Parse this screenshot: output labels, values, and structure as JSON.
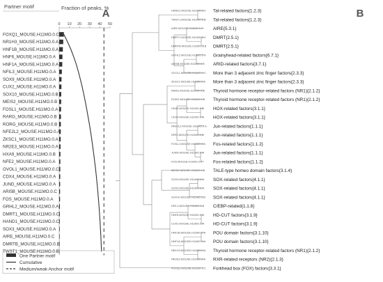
{
  "panel_a": {
    "letter": "A",
    "header_motif": "Partner motif",
    "header_fraction": "Fraction of peaks, %",
    "legend": [
      {
        "label": "One Partner motif",
        "style": "bar"
      },
      {
        "label": "Cumulative",
        "style": "line"
      },
      {
        "label": "Medium/weak Anchor motif",
        "style": "dashed"
      }
    ]
  },
  "panel_b": {
    "letter": "B",
    "leaves": [
      {
        "motif": "HAND1.MOUSE.H11MO.0.C",
        "family": "Tal-related factors{1.2.3}"
      },
      {
        "motif": "TWST1.MOUSE.H11MO.0.B",
        "family": "Tal-related factors{1.2.3}"
      },
      {
        "motif": "AIRE.MOUSE.H11MO.0.C",
        "family": "AIRE{5.3.1}"
      },
      {
        "motif": "DMRT1.MOUSE.H11MO.0.C",
        "family": "DMRT{2.5.1}"
      },
      {
        "motif": "DMRTB.MOUSE.H11MO.0.B",
        "family": "DMRT{2.5.1}"
      },
      {
        "motif": "GRHL2.MOUSE.H11MO.0.A",
        "family": "Grainyhead-related factors{6.7.1}"
      },
      {
        "motif": "ARI5B.MOUSE.H11MO.0.C",
        "family": "ARID-related factors{3.7.1}"
      },
      {
        "motif": "OVOL1.MOUSE.H11MO.0.C",
        "family": "More than 3 adjacent zinc finger factors{2.3.3}"
      },
      {
        "motif": "ZKSC1.MOUSE.H11MO.0.A",
        "family": "More than 3 adjacent zinc finger factors{2.3.3}"
      },
      {
        "motif": "RARG.MOUSE.H11MO.0.B",
        "family": "Thyroid hormone receptor-related factors (NR1){2.1.2}"
      },
      {
        "motif": "RORG.MOUSE.H11MO.0.B",
        "family": "Thyroid hormone receptor-related factors (NR1){2.1.2}"
      },
      {
        "motif": "HXA9.MOUSE.H11MO.0.B",
        "family": "HOX-related factors{3.1.1}"
      },
      {
        "motif": "CDX4.MOUSE.H11MO.0.A",
        "family": "HOX-related factors{3.1.1}"
      },
      {
        "motif": "NFE2L2.MOUSE.H11MO.0.A",
        "family": "Jun-related factors{1.1.1}"
      },
      {
        "motif": "NFE2.MOUSE.H11MO.0.A",
        "family": "Jun-related factors{1.1.1}"
      },
      {
        "motif": "FOSL1.MOUSE.H11MO.0.A",
        "family": "Fos-related factors{1.1.2}"
      },
      {
        "motif": "JUND.MOUSE.H11MO.0.A",
        "family": "Jun-related factors{1.1.1}"
      },
      {
        "motif": "FOS.MOUSE.H11MO.0.A",
        "family": "Fos-related factors{1.1.2}"
      },
      {
        "motif": "MEIS2.MOUSE.H11MO.0.B",
        "family": "TALE-type homeo domain factors{3.1.4}"
      },
      {
        "motif": "SOX3.MOUSE.H11MO.0.A",
        "family": "SOX-related factors{4.1.1}"
      },
      {
        "motif": "SOX9.MOUSE.H11MO.0.A",
        "family": "SOX-related factors{4.1.1}"
      },
      {
        "motif": "SOX10.MOUSE.H11MO.0.B",
        "family": "SOX-related factors{4.1.1}"
      },
      {
        "motif": "NFIL3.MOUSE.H11MO.0.A",
        "family": "C/EBP-related{1.1.8}"
      },
      {
        "motif": "HNF6.MOUSE.H11MO.0.A",
        "family": "HD-CUT factors{3.1.9}"
      },
      {
        "motif": "CUX2.MOUSE.H11MO.0.A",
        "family": "HD-CUT factors{3.1.9}"
      },
      {
        "motif": "HNF1B.MOUSE.H11MO.0.A",
        "family": "POU domain factors{3.1.10}"
      },
      {
        "motif": "HNF1A.MOUSE.H11MO.0.A",
        "family": "POU domain factors{3.1.10}"
      },
      {
        "motif": "NR1H3.MOUSE.H11MO.0.A",
        "family": "Thyroid hormone receptor-related factors (NR1){2.1.2}"
      },
      {
        "motif": "NR2E3.MOUSE.H11MO.0.A",
        "family": "RXR-related receptors (NR2){2.1.3}"
      },
      {
        "motif": "FOXQ1.MOUSE.H11MO.0.C",
        "family": "Forkhead box (FOX) factors{3.3.1}"
      }
    ]
  },
  "chart_data": {
    "type": "bar",
    "orientation": "horizontal",
    "xlabel": "Fraction of peaks, %",
    "xlim": [
      0,
      50
    ],
    "xticks": [
      0,
      10,
      20,
      30,
      40,
      50
    ],
    "anchor_line_x": 44,
    "categories": [
      "FOXQ1_MOUSE.H11MO.0.C",
      "NR1H3_MOUSE.H11MO.0.A",
      "HNF1B_MOUSE.H11MO.0.A",
      "HNF6_MOUSE.H11MO.0.A",
      "HNF1A_MOUSE.H11MO.0.A",
      "NFIL3_MOUSE.H11MO.0.A",
      "SOX9_MOUSE.H11MO.0.A",
      "CUX2_MOUSE.H11MO.0.A",
      "SOX10_MOUSE.H11MO.0.B",
      "MEIS2_MOUSE.H11MO.0.B",
      "FOSL1_MOUSE.H11MO.0.A",
      "RARG_MOUSE.H11MO.0.B",
      "RORG_MOUSE.H11MO.0.B",
      "NFE2L2_MOUSE.H11MO.0.A",
      "ZKSC1_MOUSE.H11MO.0.A",
      "NR2E3_MOUSE.H11MO.0.A",
      "HXA9_MOUSE.H11MO.0.B",
      "NFE2_MOUSE.H11MO.0.A",
      "OVOL1_MOUSE.H11MO.0.C",
      "CDX4_MOUSE.H11MO.0.A",
      "JUND_MOUSE.H11MO.0.A",
      "ARI5B_MOUSE.H11MO.0.C",
      "FOS_MOUSE.H11MO.0.A",
      "GRHL2_MOUSE.H11MO.0.A",
      "DMRT1_MOUSE.H11MO.0.C",
      "HAND1_MOUSE.H11MO.0.C",
      "SOX3_MOUSE.H11MO.0.A",
      "AIRE_MOUSE.H11MO.0.C",
      "DMRTB_MOUSE.H11MO.0.B",
      "TWST1_MOUSE.H11MO.0.B"
    ],
    "series": [
      {
        "name": "One Partner motif",
        "type": "bar",
        "values": [
          4.6,
          4.0,
          3.6,
          3.2,
          3.0,
          2.6,
          2.3,
          2.2,
          2.0,
          1.9,
          1.8,
          1.7,
          1.6,
          1.5,
          1.4,
          1.3,
          1.2,
          1.1,
          1.05,
          1.0,
          0.9,
          0.85,
          0.8,
          0.7,
          0.6,
          0.55,
          0.5,
          0.45,
          0.4,
          0.3
        ]
      },
      {
        "name": "Cumulative",
        "type": "line",
        "values": [
          4.6,
          8.2,
          11.5,
          14.3,
          16.8,
          18.9,
          20.8,
          22.6,
          24.2,
          25.7,
          27.1,
          28.4,
          29.7,
          30.9,
          32.0,
          33.0,
          34.0,
          34.9,
          35.8,
          36.6,
          37.3,
          38.0,
          38.6,
          39.2,
          39.7,
          40.2,
          40.6,
          41.0,
          41.3,
          41.6
        ]
      }
    ]
  }
}
